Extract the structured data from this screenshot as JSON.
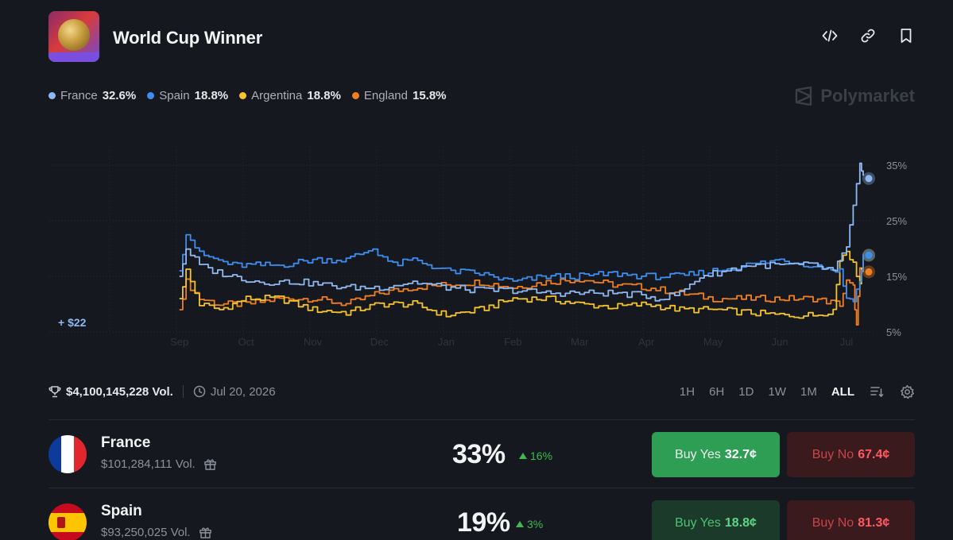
{
  "header": {
    "title": "World Cup Winner",
    "icons": [
      "code-icon",
      "link-icon",
      "bookmark-icon"
    ]
  },
  "legend": [
    {
      "name": "France",
      "value": "32.6%",
      "color": "#8fb8f2"
    },
    {
      "name": "Spain",
      "value": "18.8%",
      "color": "#3d8ef0"
    },
    {
      "name": "Argentina",
      "value": "18.8%",
      "color": "#f5c32c"
    },
    {
      "name": "England",
      "value": "15.8%",
      "color": "#f07f22"
    }
  ],
  "brand": "Polymarket",
  "chart_data": {
    "type": "line",
    "x_ticks": [
      "Sep",
      "Oct",
      "Nov",
      "Dec",
      "Jan",
      "Feb",
      "Mar",
      "Apr",
      "May",
      "Jun",
      "Jul"
    ],
    "y_ticks": [
      "35%",
      "25%",
      "15%",
      "5%"
    ],
    "ylim": [
      5,
      35
    ],
    "grid": true,
    "annotation": "+ $22",
    "series": [
      {
        "name": "France",
        "color": "#8fb8f2",
        "x": [
          0,
          0.1,
          0.3,
          0.5,
          0.8,
          1.2,
          1.8,
          2.5,
          3.0,
          3.5,
          4.0,
          4.5,
          5.0,
          5.5,
          6.0,
          6.5,
          7.0,
          7.2,
          7.5,
          7.8,
          8.2,
          8.5,
          9.0,
          9.5,
          9.8,
          10.0,
          10.1,
          10.2,
          10.25
        ],
        "y": [
          15,
          20,
          17,
          16,
          15,
          14,
          14,
          13,
          13,
          14,
          13,
          12.5,
          12.5,
          12,
          12,
          12,
          11.5,
          11,
          12,
          15,
          16,
          17,
          17,
          17,
          16,
          20,
          28,
          35,
          32.6
        ]
      },
      {
        "name": "Spain",
        "color": "#3d8ef0",
        "x": [
          0,
          0.1,
          0.3,
          0.8,
          1.5,
          2.0,
          2.5,
          2.9,
          3.2,
          3.5,
          4.0,
          4.5,
          5.0,
          5.5,
          6.0,
          6.5,
          7.0,
          7.5,
          8.0,
          8.5,
          9.0,
          9.5,
          9.9,
          10.0,
          10.1,
          10.2,
          10.25
        ],
        "y": [
          16,
          23,
          19,
          17,
          17,
          18,
          18,
          20,
          17,
          18,
          16,
          15.5,
          14,
          15,
          15,
          15.5,
          15,
          15,
          16,
          17,
          18,
          17,
          16,
          11,
          11,
          14,
          18.8
        ]
      },
      {
        "name": "Argentina",
        "color": "#f5c32c",
        "x": [
          0,
          0.1,
          0.3,
          0.6,
          1.0,
          1.5,
          2.0,
          2.5,
          3.0,
          3.5,
          4.0,
          4.5,
          5.0,
          5.5,
          6.0,
          6.5,
          7.0,
          7.5,
          8.0,
          8.5,
          9.0,
          9.5,
          9.8,
          9.9,
          10.0,
          10.1,
          10.2,
          10.25
        ],
        "y": [
          11,
          16,
          10,
          9,
          11,
          11,
          9,
          8.5,
          10,
          10,
          8,
          9,
          11,
          11,
          10,
          9.5,
          10,
          9,
          9,
          8.5,
          8,
          8,
          9,
          18,
          20,
          17,
          14,
          18.8
        ]
      },
      {
        "name": "England",
        "color": "#f07f22",
        "x": [
          0,
          0.1,
          0.3,
          0.6,
          1.0,
          1.5,
          2.0,
          2.5,
          3.0,
          3.5,
          4.0,
          4.5,
          5.0,
          5.5,
          6.0,
          6.5,
          7.0,
          7.5,
          8.0,
          8.5,
          9.0,
          9.5,
          9.9,
          10.0,
          10.1,
          10.15,
          10.2,
          10.25
        ],
        "y": [
          9,
          14,
          11,
          10,
          10,
          11,
          11,
          10,
          12,
          13,
          13.5,
          14,
          13,
          14,
          14.5,
          13.5,
          13,
          12,
          11,
          11,
          11,
          11,
          10,
          14,
          13,
          6,
          16,
          15.8
        ]
      }
    ]
  },
  "stats": {
    "volume": "$4,100,145,228 Vol.",
    "date": "Jul 20, 2026",
    "ranges": [
      "1H",
      "6H",
      "1D",
      "1W",
      "1M",
      "ALL"
    ],
    "active_range": "ALL"
  },
  "outcomes": [
    {
      "name": "France",
      "volume": "$101,284,111 Vol.",
      "percent": "33%",
      "change": "16%",
      "buy_yes_label": "Buy Yes",
      "buy_yes_price": "32.7¢",
      "buy_no_label": "Buy No",
      "buy_no_price": "67.4¢"
    },
    {
      "name": "Spain",
      "volume": "$93,250,025 Vol.",
      "percent": "19%",
      "change": "3%",
      "buy_yes_label": "Buy Yes",
      "buy_yes_price": "18.8¢",
      "buy_no_label": "Buy No",
      "buy_no_price": "81.3¢"
    }
  ]
}
